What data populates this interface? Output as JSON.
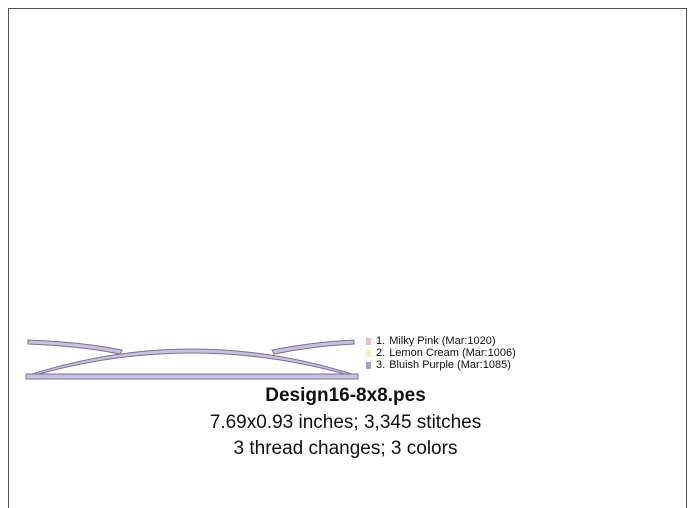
{
  "design": {
    "filename": "Design16-8x8.pes",
    "dimensions_line": "7.69x0.93 inches; 3,345 stitches",
    "thread_line": "3 thread changes; 3 colors"
  },
  "legend": [
    {
      "number": "1.",
      "label": "Milky Pink (Mar:1020)",
      "color": "#f0bcc8"
    },
    {
      "number": "2.",
      "label": "Lemon Cream (Mar:1006)",
      "color": "#f3efbf"
    },
    {
      "number": "3.",
      "label": "Bluish Purple (Mar:1085)",
      "color": "#a79ccb"
    }
  ],
  "colors": {
    "stitch_outline": "#7a7090",
    "stitch_fill": "#c8c0e0"
  }
}
